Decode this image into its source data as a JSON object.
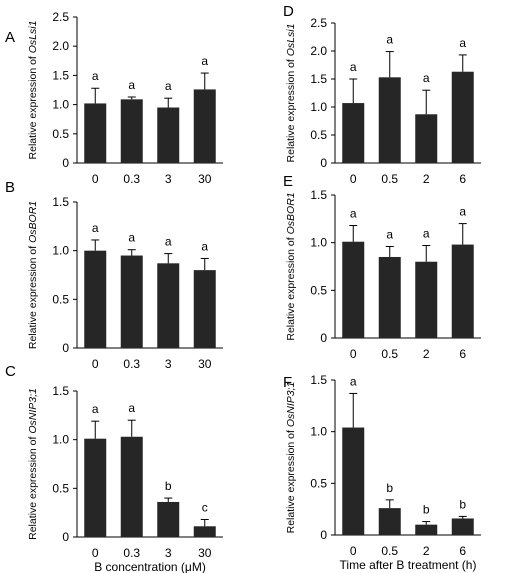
{
  "chart_data": [
    {
      "type": "bar",
      "panel_label": "A",
      "ylabel_prefix": "Relative  expression of ",
      "gene": "OsLsi1",
      "categories": [
        "0",
        "0.3",
        "3",
        "30"
      ],
      "values": [
        1.02,
        1.09,
        0.95,
        1.26
      ],
      "errors": [
        0.26,
        0.04,
        0.16,
        0.28
      ],
      "letters": [
        "a",
        "a",
        "a",
        "a"
      ],
      "ylim": [
        0,
        2.5
      ],
      "yticks": [
        "0",
        "0.5",
        "1.0",
        "1.5",
        "2.0",
        "2.5"
      ],
      "xlabel": ""
    },
    {
      "type": "bar",
      "panel_label": "B",
      "ylabel_prefix": "Relative  expression of ",
      "gene": "OsBOR1",
      "categories": [
        "0",
        "0.3",
        "3",
        "30"
      ],
      "values": [
        1.0,
        0.95,
        0.87,
        0.8
      ],
      "errors": [
        0.11,
        0.06,
        0.1,
        0.12
      ],
      "letters": [
        "a",
        "a",
        "a",
        "a"
      ],
      "ylim": [
        0,
        1.5
      ],
      "yticks": [
        "0",
        "0.5",
        "1.0",
        "1.5"
      ],
      "xlabel": ""
    },
    {
      "type": "bar",
      "panel_label": "C",
      "ylabel_prefix": "Relative  expression of ",
      "gene": "OsNIP3;1",
      "categories": [
        "0",
        "0.3",
        "3",
        "30"
      ],
      "values": [
        1.01,
        1.03,
        0.36,
        0.11
      ],
      "errors": [
        0.18,
        0.17,
        0.04,
        0.07
      ],
      "letters": [
        "a",
        "a",
        "b",
        "c"
      ],
      "ylim": [
        0,
        1.5
      ],
      "yticks": [
        "0",
        "0.5",
        "1.0",
        "1.5"
      ],
      "xlabel": "B concentration (μM)"
    },
    {
      "type": "bar",
      "panel_label": "D",
      "ylabel_prefix": "Relative  expression of ",
      "gene": "OsLsi1",
      "categories": [
        "0",
        "0.5",
        "2",
        "6"
      ],
      "values": [
        1.07,
        1.53,
        0.87,
        1.63
      ],
      "errors": [
        0.43,
        0.46,
        0.43,
        0.3
      ],
      "letters": [
        "a",
        "a",
        "a",
        "a"
      ],
      "ylim": [
        0,
        2.5
      ],
      "yticks": [
        "0",
        "0.5",
        "1.0",
        "1.5",
        "2.0",
        "2.5"
      ],
      "xlabel": ""
    },
    {
      "type": "bar",
      "panel_label": "E",
      "ylabel_prefix": "Relative  expression of ",
      "gene": "OsBOR1",
      "categories": [
        "0",
        "0.5",
        "2",
        "6"
      ],
      "values": [
        1.01,
        0.85,
        0.8,
        0.98
      ],
      "errors": [
        0.17,
        0.11,
        0.17,
        0.22
      ],
      "letters": [
        "a",
        "a",
        "a",
        "a"
      ],
      "ylim": [
        0,
        1.5
      ],
      "yticks": [
        "0",
        "0.5",
        "1.0",
        "1.5"
      ],
      "xlabel": ""
    },
    {
      "type": "bar",
      "panel_label": "F",
      "ylabel_prefix": "Relative  expression of ",
      "gene": "OsNIP3;1",
      "categories": [
        "0",
        "0.5",
        "2",
        "6"
      ],
      "values": [
        1.04,
        0.26,
        0.1,
        0.16
      ],
      "errors": [
        0.33,
        0.08,
        0.03,
        0.02
      ],
      "letters": [
        "a",
        "b",
        "b",
        "b"
      ],
      "ylim": [
        0,
        1.5
      ],
      "yticks": [
        "0",
        "0.5",
        "1.0",
        "1.5"
      ],
      "xlabel": "Time after B treatment (h)"
    }
  ]
}
